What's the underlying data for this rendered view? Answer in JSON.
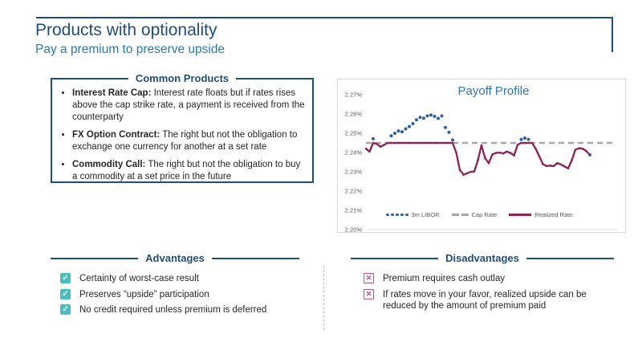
{
  "slide": {
    "title": "Products with optionality",
    "subtitle": "Pay a premium to preserve upside"
  },
  "common_products": {
    "title": "Common Products",
    "items": [
      {
        "term": "Interest Rate Cap:",
        "desc": " Interest rate floats but if rates rises above the cap strike rate, a payment is received from the counterparty"
      },
      {
        "term": "FX Option Contract:",
        "desc": " The right but not the obligation to exchange one currency for another at a set rate"
      },
      {
        "term": "Commodity Call:",
        "desc": " The right but not the obligation to buy a commodity at a set price in the future"
      }
    ]
  },
  "advantages": {
    "title": "Advantages",
    "items": [
      "Certainty of worst-case result",
      "Preserves “upside” participation",
      "No credit required unless premium is deferred"
    ]
  },
  "disadvantages": {
    "title": "Disadvantages",
    "items": [
      "Premium requires cash outlay",
      "If rates move in your favor, realized upside can be reduced by the amount of premium paid"
    ]
  },
  "icons": {
    "check": "✓",
    "cross": "✕"
  },
  "colors": {
    "navy": "#1f4e79",
    "subtitle_blue": "#2a7aae",
    "chart_title_blue": "#2e75b6",
    "libor_blue": "#2e5f9e",
    "realized_maroon": "#8e2157",
    "cap_gray": "#a6a6a6",
    "check_teal": "#4abdbe",
    "cross_pink": "#b2588c"
  },
  "chart_data": {
    "type": "line",
    "title": "Payoff Profile",
    "xlabel": "",
    "ylabel": "",
    "ylim": [
      2.2,
      2.27
    ],
    "yticks": [
      2.27,
      2.26,
      2.25,
      2.24,
      2.23,
      2.22,
      2.21,
      2.2
    ],
    "ytick_suffix": "%",
    "grid": false,
    "legend_position": "bottom",
    "cap_rate": 2.245,
    "series": [
      {
        "name": "3m LIBOR",
        "style": "dots",
        "color": "#2e5f9e",
        "values": [
          2.242,
          2.2405,
          2.2472,
          2.2445,
          2.243,
          2.244,
          2.2455,
          2.2487,
          2.25,
          2.2512,
          2.2508,
          2.2523,
          2.2535,
          2.255,
          2.257,
          2.2583,
          2.2578,
          2.259,
          2.2595,
          2.2588,
          2.2577,
          2.259,
          2.253,
          2.2505,
          2.2465,
          2.24,
          2.231,
          2.2285,
          2.2292,
          2.23,
          2.2302,
          2.236,
          2.2438,
          2.237,
          2.2345,
          2.239,
          2.2398,
          2.24,
          2.2395,
          2.2405,
          2.2398,
          2.2385,
          2.244,
          2.2468,
          2.2475,
          2.2468,
          2.245,
          2.242,
          2.238,
          2.234,
          2.233,
          2.2332,
          2.233,
          2.2345,
          2.2338,
          2.2328,
          2.2318,
          2.236,
          2.2415,
          2.2422,
          2.242,
          2.2408,
          2.2388
        ]
      },
      {
        "name": "Cap Rate",
        "style": "dashed",
        "color": "#a6a6a6",
        "value": 2.245
      },
      {
        "name": "Realized Rate",
        "style": "line",
        "color": "#8e2157",
        "values": [
          2.242,
          2.2405,
          2.245,
          2.2445,
          2.243,
          2.244,
          2.245,
          2.245,
          2.245,
          2.245,
          2.245,
          2.245,
          2.245,
          2.245,
          2.245,
          2.245,
          2.245,
          2.245,
          2.245,
          2.245,
          2.245,
          2.245,
          2.245,
          2.245,
          2.245,
          2.24,
          2.231,
          2.2285,
          2.2292,
          2.23,
          2.2302,
          2.236,
          2.2438,
          2.237,
          2.2345,
          2.239,
          2.2398,
          2.24,
          2.2395,
          2.2405,
          2.2398,
          2.2385,
          2.244,
          2.245,
          2.245,
          2.245,
          2.245,
          2.242,
          2.238,
          2.234,
          2.233,
          2.2332,
          2.233,
          2.2345,
          2.2338,
          2.2328,
          2.2318,
          2.236,
          2.2415,
          2.2422,
          2.242,
          2.2408,
          2.2388
        ]
      }
    ]
  }
}
